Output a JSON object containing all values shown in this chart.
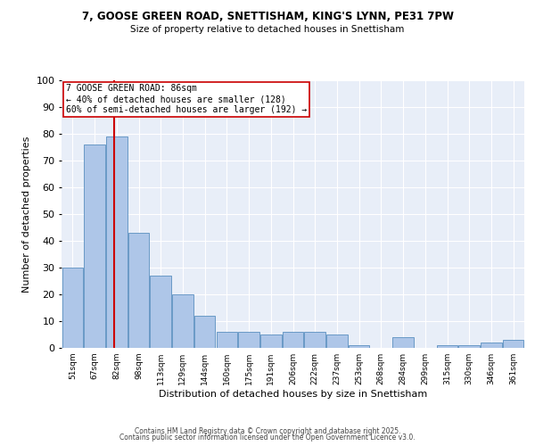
{
  "title1": "7, GOOSE GREEN ROAD, SNETTISHAM, KING'S LYNN, PE31 7PW",
  "title2": "Size of property relative to detached houses in Snettisham",
  "xlabel": "Distribution of detached houses by size in Snettisham",
  "ylabel": "Number of detached properties",
  "bins": [
    51,
    67,
    82,
    98,
    113,
    129,
    144,
    160,
    175,
    191,
    206,
    222,
    237,
    253,
    268,
    284,
    299,
    315,
    330,
    346,
    361
  ],
  "values": [
    30,
    76,
    79,
    43,
    27,
    20,
    12,
    6,
    6,
    5,
    6,
    6,
    5,
    1,
    0,
    4,
    0,
    1,
    1,
    2,
    3
  ],
  "bar_color": "#aec6e8",
  "bar_edge_color": "#5a8fc0",
  "vline_x": 86,
  "vline_color": "#cc0000",
  "annotation_text": "7 GOOSE GREEN ROAD: 86sqm\n← 40% of detached houses are smaller (128)\n60% of semi-detached houses are larger (192) →",
  "annotation_box_color": "#ffffff",
  "annotation_box_edge": "#cc0000",
  "ylim": [
    0,
    100
  ],
  "background_color": "#e8eef8",
  "footer1": "Contains HM Land Registry data © Crown copyright and database right 2025.",
  "footer2": "Contains public sector information licensed under the Open Government Licence v3.0.",
  "tick_labels": [
    "51sqm",
    "67sqm",
    "82sqm",
    "98sqm",
    "113sqm",
    "129sqm",
    "144sqm",
    "160sqm",
    "175sqm",
    "191sqm",
    "206sqm",
    "222sqm",
    "237sqm",
    "253sqm",
    "268sqm",
    "284sqm",
    "299sqm",
    "315sqm",
    "330sqm",
    "346sqm",
    "361sqm"
  ],
  "yticks": [
    0,
    10,
    20,
    30,
    40,
    50,
    60,
    70,
    80,
    90,
    100
  ]
}
